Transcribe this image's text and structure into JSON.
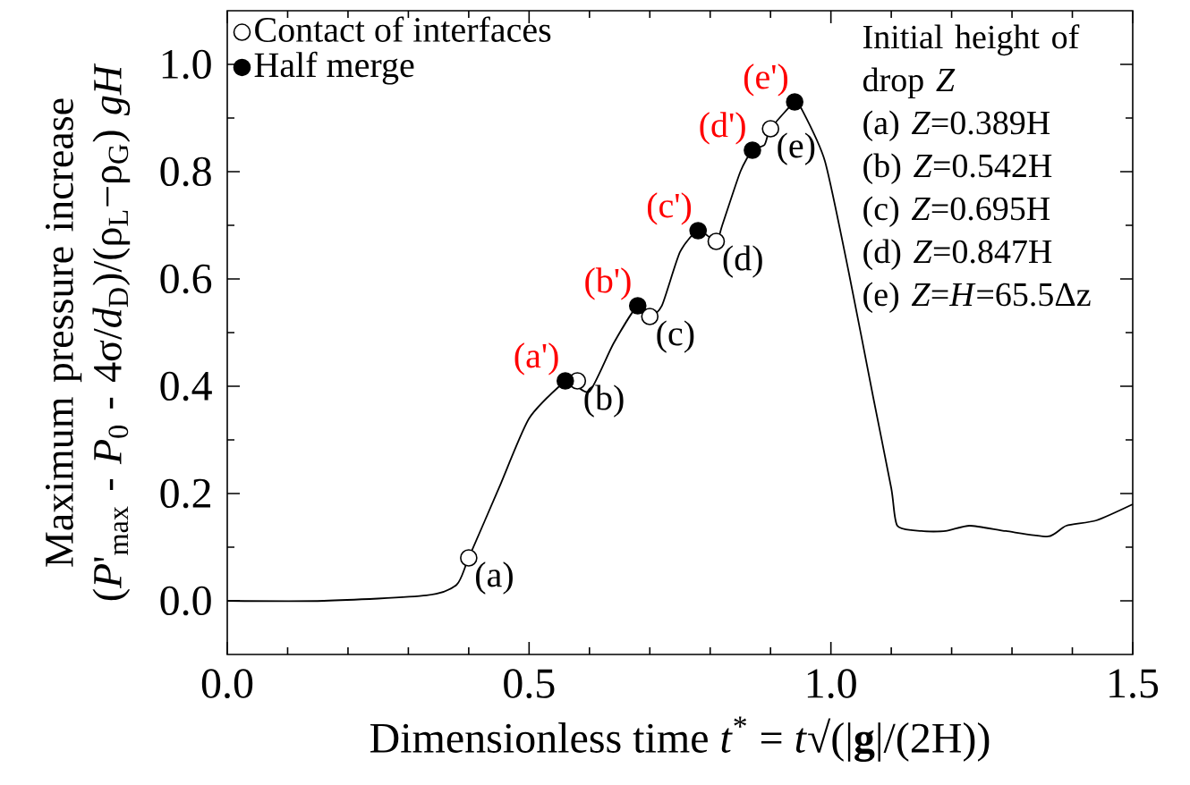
{
  "chart_data": {
    "type": "line",
    "xlabel": "Dimensionless time  *t*$^{*}$ = *t*√(|**g**|/(2H))",
    "ylabel": "Maximum pressure increase (*P*'$_{max}$ - *P*$_{0}$ - 4σ/*d*$_{D}$)/(ρ$_{L}$−ρ$_{G}$) *gH*",
    "xlim": [
      0,
      1.5
    ],
    "ylim": [
      -0.1,
      1.1
    ],
    "xticks": [
      {
        "value": 0,
        "label": "0.0"
      },
      {
        "value": 0.1,
        "label": null
      },
      {
        "value": 0.2,
        "label": null
      },
      {
        "value": 0.3,
        "label": null
      },
      {
        "value": 0.4,
        "label": null
      },
      0.5,
      {
        "value": 0.6,
        "label": null
      },
      {
        "value": 0.7,
        "label": null
      },
      {
        "value": 0.8,
        "label": null
      },
      {
        "value": 0.9,
        "label": null
      },
      {
        "value": 1,
        "label": "1.0"
      },
      {
        "value": 1.1,
        "label": null
      },
      {
        "value": 1.2,
        "label": null
      },
      {
        "value": 1.3,
        "label": null
      },
      {
        "value": 1.4,
        "label": null
      },
      1.5
    ],
    "yticks": [
      {
        "value": 0,
        "label": "0.0"
      },
      {
        "value": 0.1,
        "label": null
      },
      0.2,
      {
        "value": 0.3,
        "label": null
      },
      0.4,
      {
        "value": 0.5,
        "label": null
      },
      0.6,
      {
        "value": 0.7,
        "label": null
      },
      0.8,
      {
        "value": 0.9,
        "label": null
      },
      {
        "value": 1,
        "label": "1.0"
      }
    ],
    "series": [
      {
        "color": "#000000",
        "x": [
          0,
          0.16,
          0.33,
          0.38,
          0.4,
          0.45,
          0.5,
          0.56,
          0.57,
          0.6,
          0.64,
          0.68,
          0.7,
          0.72,
          0.75,
          0.78,
          0.81,
          0.82,
          0.85,
          0.87,
          0.89,
          0.9,
          0.94,
          0.95,
          0.99,
          1.03,
          1.07,
          1.1,
          1.11,
          1.15,
          1.19,
          1.23,
          1.29,
          1.36,
          1.39,
          1.44,
          1.5
        ],
        "values": [
          0,
          0,
          0.01,
          0.03,
          0.08,
          0.21,
          0.34,
          0.41,
          0.41,
          0.39,
          0.48,
          0.55,
          0.53,
          0.55,
          0.65,
          0.69,
          0.67,
          0.7,
          0.8,
          0.84,
          0.85,
          0.88,
          0.93,
          0.92,
          0.82,
          0.61,
          0.38,
          0.21,
          0.14,
          0.13,
          0.13,
          0.14,
          0.13,
          0.12,
          0.14,
          0.15,
          0.18
        ]
      },
      {
        "name": "Contact of interfaces",
        "type": "scatter",
        "color": "#ffffff",
        "x": [
          0.4,
          0.58,
          0.7,
          0.81,
          0.9
        ],
        "values": [
          0.08,
          0.41,
          0.53,
          0.67,
          0.88
        ]
      },
      {
        "name": "Half merge",
        "type": "scatter",
        "color": "#000000",
        "x": [
          0.56,
          0.68,
          0.78,
          0.87,
          0.94
        ],
        "values": [
          0.41,
          0.55,
          0.69,
          0.84,
          0.93
        ]
      }
    ],
    "legend": "top left",
    "annotations": [
      {
        "text": "(a)",
        "x": 0.4,
        "y": 0.08
      },
      {
        "text": "(b)",
        "x": 0.58,
        "y": 0.41
      },
      {
        "text": "(c)",
        "x": 0.7,
        "y": 0.53
      },
      {
        "text": "(d)",
        "x": 0.81,
        "y": 0.67
      },
      {
        "text": "(e)",
        "x": 0.9,
        "y": 0.88
      },
      {
        "text": "(a')",
        "x": 0.56,
        "y": 0.41
      },
      {
        "text": "(b')",
        "x": 0.68,
        "y": 0.55
      },
      {
        "text": "(c')",
        "x": 0.78,
        "y": 0.69
      },
      {
        "text": "(d')",
        "x": 0.87,
        "y": 0.84
      },
      {
        "text": "(e')",
        "x": 0.94,
        "y": 0.93
      },
      "Initial height of drop *Z*",
      "(a) *Z*=0.389H",
      "(b) *Z*=0.542H",
      "(c) *Z*=0.695H",
      "(d) *Z*=0.847H",
      "(e) *Z*=*H*=65.5Δz"
    ]
  }
}
